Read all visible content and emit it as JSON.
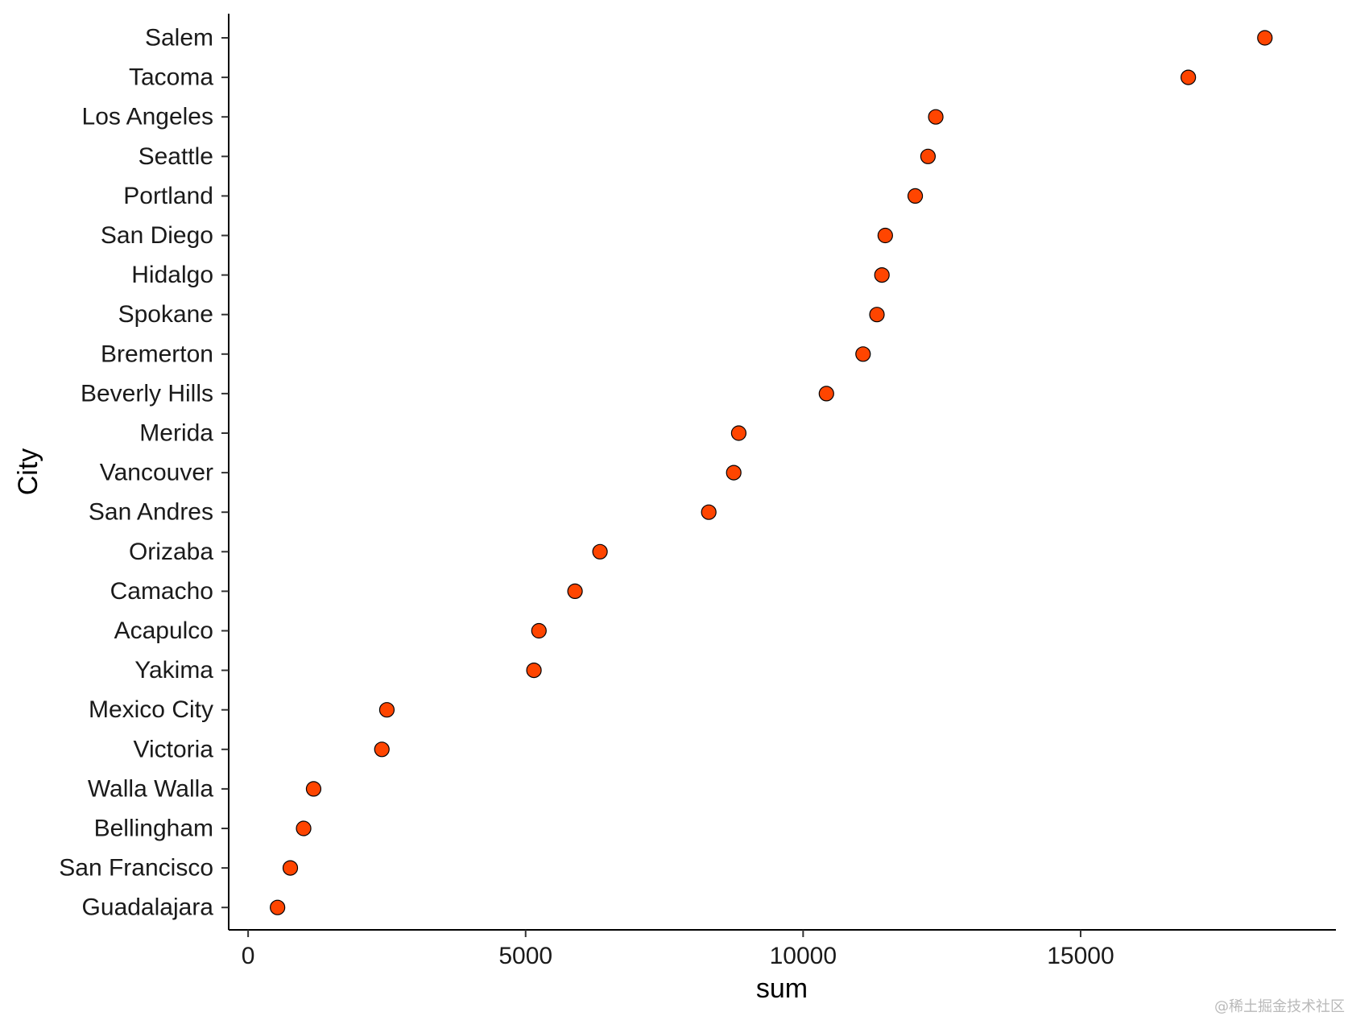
{
  "chart_data": {
    "type": "scatter",
    "title": "",
    "xlabel": "sum",
    "ylabel": "City",
    "xlim": [
      -350,
      19600
    ],
    "xticks": [
      0,
      5000,
      10000,
      15000
    ],
    "xtick_labels": [
      "0",
      "5000",
      "10000",
      "15000"
    ],
    "grid": false,
    "point_color": "#FF4500",
    "point_stroke": "#000000",
    "categories": [
      "Salem",
      "Tacoma",
      "Los Angeles",
      "Seattle",
      "Portland",
      "San Diego",
      "Hidalgo",
      "Spokane",
      "Bremerton",
      "Beverly Hills",
      "Merida",
      "Vancouver",
      "San Andres",
      "Orizaba",
      "Camacho",
      "Acapulco",
      "Yakima",
      "Mexico City",
      "Victoria",
      "Walla Walla",
      "Bellingham",
      "San Francisco",
      "Guadalajara"
    ],
    "values": [
      18320,
      16940,
      12390,
      12250,
      12020,
      11480,
      11420,
      11330,
      11080,
      10420,
      8840,
      8750,
      8300,
      6340,
      5890,
      5240,
      5150,
      2500,
      2410,
      1180,
      1000,
      760,
      530
    ]
  },
  "watermark": "@稀土掘金技术社区"
}
